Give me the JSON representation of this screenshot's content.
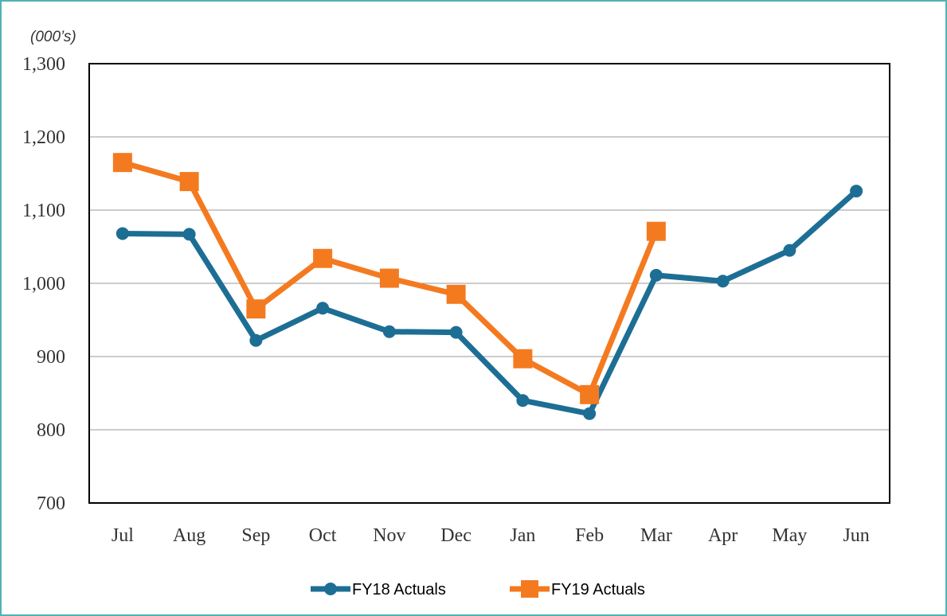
{
  "chart_data": {
    "type": "line",
    "subtitle": "(000’s)",
    "categories": [
      "Jul",
      "Aug",
      "Sep",
      "Oct",
      "Nov",
      "Dec",
      "Jan",
      "Feb",
      "Mar",
      "Apr",
      "May",
      "Jun"
    ],
    "series": [
      {
        "name": "FY18 Actuals",
        "color": "#1d6e94",
        "marker": "circle",
        "values": [
          1068,
          1067,
          922,
          966,
          934,
          933,
          840,
          822,
          1011,
          1003,
          1045,
          1126
        ]
      },
      {
        "name": "FY19 Actuals",
        "color": "#f47a20",
        "marker": "square",
        "values": [
          1165,
          1139,
          965,
          1034,
          1007,
          985,
          897,
          848,
          1071,
          null,
          null,
          null
        ]
      }
    ],
    "ylim": [
      700,
      1300
    ],
    "yticks": [
      700,
      800,
      900,
      {
        "value": 1000,
        "label": "1,000"
      },
      {
        "value": 1100,
        "label": "1,100"
      },
      {
        "value": 1200,
        "label": "1,200"
      },
      {
        "value": 1300,
        "label": "1,300"
      }
    ],
    "grid": true,
    "legend": "bottom"
  }
}
